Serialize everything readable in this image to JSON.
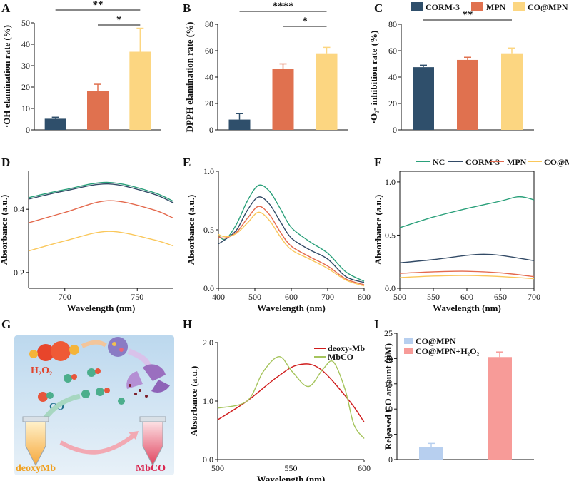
{
  "panel_labels": [
    "A",
    "B",
    "C",
    "D",
    "E",
    "F",
    "G",
    "H",
    "I"
  ],
  "colors": {
    "CORM-3": "#2f4f6b",
    "MPN": "#e0714f",
    "CO@MPN": "#fcd681",
    "NC": "#2aa07a",
    "CORM-3_line": "#324a66",
    "MPN_line": "#e46a4e",
    "CO@MPN_line": "#fac75a",
    "deoxy-Mb": "#d01c1c",
    "MbCO": "#a5c45c",
    "CO@MPN_bar_I": "#b7cfef",
    "CO@MPN+H2O2_bar_I": "#f79b98"
  },
  "top_legend": [
    "CORM-3",
    "MPN",
    "CO@MPN"
  ],
  "line_legend": [
    "NC",
    "CORM-3",
    "MPN",
    "CO@MPN"
  ],
  "panel_G": {
    "h2o2": "H₂O₂",
    "co": "CO",
    "deoxymb": "deoxyMb",
    "mbco": "MbCO"
  },
  "chart_data": [
    {
      "id": "A",
      "type": "bar",
      "categories": [
        "CORM-3",
        "MPN",
        "CO@MPN"
      ],
      "values": [
        5.2,
        18.3,
        36.5
      ],
      "errors": [
        0.7,
        3.0,
        11.0
      ],
      "ylabel": "·OH elamination rate (%)",
      "ylim": [
        0,
        50
      ],
      "yticks": [
        "0",
        "10",
        "20",
        "30",
        "40",
        "50"
      ],
      "significance": [
        {
          "label": "**",
          "from": 0,
          "to": 2
        },
        {
          "label": "*",
          "from": 1,
          "to": 2
        }
      ]
    },
    {
      "id": "B",
      "type": "bar",
      "categories": [
        "CORM-3",
        "MPN",
        "CO@MPN"
      ],
      "values": [
        7.8,
        46.0,
        58.0
      ],
      "errors": [
        4.5,
        4.0,
        4.5
      ],
      "ylabel": "DPPH elamination rate (%)",
      "ylim": [
        0,
        80
      ],
      "yticks": [
        "0",
        "20",
        "40",
        "60",
        "80"
      ],
      "significance": [
        {
          "label": "****",
          "from": 0,
          "to": 2
        },
        {
          "label": "*",
          "from": 1,
          "to": 2
        }
      ]
    },
    {
      "id": "C",
      "type": "bar",
      "categories": [
        "CORM-3",
        "MPN",
        "CO@MPN"
      ],
      "values": [
        47.5,
        53.0,
        58.0
      ],
      "errors": [
        1.5,
        2.0,
        4.0
      ],
      "ylabel": "·O₂- inhibition rate (%)",
      "ylim": [
        0,
        80
      ],
      "yticks": [
        "0",
        "20",
        "40",
        "60",
        "80"
      ],
      "significance": [
        {
          "label": "**",
          "from": 0,
          "to": 2
        }
      ]
    },
    {
      "id": "D",
      "type": "line",
      "xlabel": "Wavelength (nm)",
      "ylabel": "Absorbance (a.u.)",
      "xlim": [
        675,
        775
      ],
      "ylim": [
        0.15,
        0.52
      ],
      "xticks": [
        "700",
        "750"
      ],
      "yticks": [
        "0.2",
        "0.4"
      ],
      "series": [
        {
          "name": "NC",
          "x": [
            675,
            700,
            730,
            760,
            775
          ],
          "y": [
            0.437,
            0.462,
            0.485,
            0.455,
            0.425
          ]
        },
        {
          "name": "CORM-3",
          "x": [
            675,
            700,
            730,
            760,
            775
          ],
          "y": [
            0.432,
            0.458,
            0.48,
            0.45,
            0.42
          ]
        },
        {
          "name": "MPN",
          "x": [
            675,
            700,
            730,
            760,
            775
          ],
          "y": [
            0.357,
            0.39,
            0.427,
            0.4,
            0.372
          ]
        },
        {
          "name": "CO@MPN",
          "x": [
            675,
            700,
            730,
            760,
            775
          ],
          "y": [
            0.268,
            0.3,
            0.33,
            0.305,
            0.284
          ]
        }
      ]
    },
    {
      "id": "E",
      "type": "line",
      "xlabel": "Wavelength (nm)",
      "ylabel": "Absorbance (a.u.)",
      "xlim": [
        400,
        800
      ],
      "ylim": [
        0,
        1.0
      ],
      "xticks": [
        "400",
        "500",
        "600",
        "700",
        "800"
      ],
      "yticks": [
        "0.0",
        "0.5",
        "1.0"
      ],
      "series": [
        {
          "name": "NC",
          "x": [
            400,
            420,
            450,
            480,
            510,
            540,
            570,
            600,
            650,
            700,
            750,
            800
          ],
          "y": [
            0.45,
            0.42,
            0.55,
            0.75,
            0.88,
            0.83,
            0.68,
            0.52,
            0.4,
            0.3,
            0.14,
            0.06
          ]
        },
        {
          "name": "CORM-3",
          "x": [
            400,
            420,
            450,
            480,
            510,
            540,
            570,
            600,
            650,
            700,
            750,
            800
          ],
          "y": [
            0.38,
            0.42,
            0.5,
            0.67,
            0.78,
            0.72,
            0.57,
            0.43,
            0.33,
            0.25,
            0.1,
            0.05
          ]
        },
        {
          "name": "MPN",
          "x": [
            400,
            420,
            450,
            480,
            510,
            540,
            570,
            600,
            650,
            700,
            750,
            800
          ],
          "y": [
            0.44,
            0.43,
            0.48,
            0.6,
            0.7,
            0.63,
            0.48,
            0.36,
            0.27,
            0.19,
            0.08,
            0.03
          ]
        },
        {
          "name": "CO@MPN",
          "x": [
            400,
            420,
            450,
            480,
            510,
            540,
            570,
            600,
            650,
            700,
            750,
            800
          ],
          "y": [
            0.46,
            0.44,
            0.47,
            0.56,
            0.65,
            0.58,
            0.44,
            0.33,
            0.25,
            0.17,
            0.07,
            0.02
          ]
        }
      ]
    },
    {
      "id": "F",
      "type": "line",
      "xlabel": "Wavelength (nm)",
      "ylabel": "Absorbance (a.u.)",
      "xlim": [
        500,
        700
      ],
      "ylim": [
        0,
        1.1
      ],
      "xticks": [
        "500",
        "550",
        "600",
        "650",
        "700"
      ],
      "yticks": [
        "0.0",
        "0.5",
        "1.0"
      ],
      "series": [
        {
          "name": "NC",
          "x": [
            500,
            550,
            600,
            650,
            675,
            690,
            700
          ],
          "y": [
            0.57,
            0.67,
            0.75,
            0.82,
            0.86,
            0.85,
            0.83
          ]
        },
        {
          "name": "CORM-3",
          "x": [
            500,
            550,
            600,
            625,
            650,
            700
          ],
          "y": [
            0.24,
            0.27,
            0.31,
            0.32,
            0.31,
            0.26
          ]
        },
        {
          "name": "MPN",
          "x": [
            500,
            550,
            600,
            650,
            700
          ],
          "y": [
            0.14,
            0.155,
            0.16,
            0.145,
            0.11
          ]
        },
        {
          "name": "CO@MPN",
          "x": [
            500,
            550,
            600,
            650,
            700
          ],
          "y": [
            0.1,
            0.115,
            0.12,
            0.11,
            0.09
          ]
        }
      ]
    },
    {
      "id": "H",
      "type": "line",
      "xlabel": "Wavelength (nm)",
      "ylabel": "Absorbance (a.u.)",
      "xlim": [
        500,
        600
      ],
      "ylim": [
        0,
        2.0
      ],
      "xticks": [
        "500",
        "550",
        "600"
      ],
      "yticks": [
        "0.0",
        "1.0",
        "2.0"
      ],
      "series": [
        {
          "name": "deoxy-Mb",
          "x": [
            500,
            520,
            540,
            555,
            570,
            590,
            600
          ],
          "y": [
            0.68,
            1.0,
            1.4,
            1.62,
            1.55,
            1.0,
            0.64
          ]
        },
        {
          "name": "MbCO",
          "x": [
            500,
            520,
            531,
            542,
            551,
            562,
            572,
            579,
            587,
            593,
            600
          ],
          "y": [
            0.88,
            1.0,
            1.5,
            1.76,
            1.5,
            1.25,
            1.55,
            1.67,
            1.2,
            0.6,
            0.36
          ]
        }
      ]
    },
    {
      "id": "I",
      "type": "bar",
      "categories": [
        "CO@MPN",
        "CO@MPN+H₂O₂"
      ],
      "values": [
        2.5,
        20.3
      ],
      "errors": [
        0.7,
        1.0
      ],
      "ylabel": "Released CO amount (μM)",
      "ylim": [
        0,
        25
      ],
      "yticks": [
        "0",
        "5",
        "10",
        "15",
        "20",
        "25"
      ],
      "legend": [
        "CO@MPN",
        "CO@MPN+H₂O₂"
      ]
    }
  ]
}
